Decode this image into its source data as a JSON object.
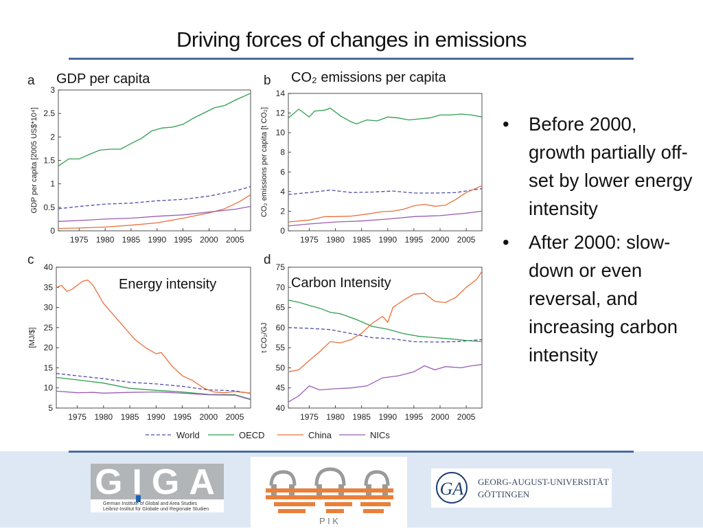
{
  "slide": {
    "title": "Driving forces of changes in emissions",
    "bullets": [
      "Before 2000, growth partially off-set by lower energy intensity",
      "After 2000: slow-down or even reversal, and increasing carbon intensity"
    ]
  },
  "logos": {
    "giga": {
      "big": "GIGA",
      "line1": "German Institute of Global and Area Studies",
      "line2": "Leibniz-Institut für Globale und Regionale Studien"
    },
    "pik": {
      "text": "P I K"
    },
    "goettingen": {
      "line1": "GEORG-AUGUST-UNIVERSITÄT",
      "line2": "GÖTTINGEN"
    }
  },
  "colors": {
    "world": "#4a4aa8",
    "oecd": "#2e9e4e",
    "china": "#e8703a",
    "nics": "#9a5cb4",
    "rule": "#4a6aa0"
  },
  "legend": [
    "World",
    "OECD",
    "China",
    "NICs"
  ],
  "chart_data": [
    {
      "type": "line",
      "letter": "a",
      "title": "GDP per capita",
      "ylabel": "GDP per capita [2005 US$*10⁴]",
      "xlim": [
        1971,
        2008
      ],
      "ylim": [
        0,
        3
      ],
      "yticks": [
        0,
        0.5,
        1,
        1.5,
        2,
        2.5,
        3
      ],
      "xticks": [
        1975,
        1980,
        1985,
        1990,
        1995,
        2000,
        2005
      ],
      "series": [
        {
          "name": "World",
          "points": [
            [
              1971,
              0.47
            ],
            [
              1975,
              0.52
            ],
            [
              1980,
              0.57
            ],
            [
              1985,
              0.59
            ],
            [
              1990,
              0.64
            ],
            [
              1995,
              0.67
            ],
            [
              2000,
              0.74
            ],
            [
              2005,
              0.85
            ],
            [
              2008,
              0.94
            ]
          ]
        },
        {
          "name": "OECD",
          "points": [
            [
              1971,
              1.38
            ],
            [
              1973,
              1.53
            ],
            [
              1975,
              1.53
            ],
            [
              1977,
              1.63
            ],
            [
              1979,
              1.72
            ],
            [
              1981,
              1.74
            ],
            [
              1983,
              1.74
            ],
            [
              1985,
              1.86
            ],
            [
              1987,
              1.97
            ],
            [
              1989,
              2.13
            ],
            [
              1991,
              2.19
            ],
            [
              1993,
              2.21
            ],
            [
              1995,
              2.27
            ],
            [
              1997,
              2.4
            ],
            [
              1999,
              2.51
            ],
            [
              2001,
              2.62
            ],
            [
              2003,
              2.67
            ],
            [
              2005,
              2.78
            ],
            [
              2008,
              2.93
            ]
          ]
        },
        {
          "name": "China",
          "points": [
            [
              1971,
              0.05
            ],
            [
              1975,
              0.06
            ],
            [
              1980,
              0.08
            ],
            [
              1985,
              0.12
            ],
            [
              1990,
              0.17
            ],
            [
              1995,
              0.27
            ],
            [
              2000,
              0.38
            ],
            [
              2003,
              0.47
            ],
            [
              2006,
              0.63
            ],
            [
              2008,
              0.77
            ]
          ]
        },
        {
          "name": "NICs",
          "points": [
            [
              1971,
              0.2
            ],
            [
              1975,
              0.22
            ],
            [
              1980,
              0.25
            ],
            [
              1985,
              0.27
            ],
            [
              1990,
              0.31
            ],
            [
              1995,
              0.34
            ],
            [
              2000,
              0.4
            ],
            [
              2005,
              0.46
            ],
            [
              2008,
              0.52
            ]
          ]
        }
      ]
    },
    {
      "type": "line",
      "letter": "b",
      "title": "CO₂ emissions per capita",
      "ylabel": "CO₂ emissions per capita [t CO₂]",
      "xlim": [
        1971,
        2008
      ],
      "ylim": [
        0,
        14
      ],
      "yticks": [
        0,
        2,
        4,
        6,
        8,
        10,
        12,
        14
      ],
      "xticks": [
        1975,
        1980,
        1985,
        1990,
        1995,
        2000,
        2005
      ],
      "series": [
        {
          "name": "World",
          "points": [
            [
              1971,
              3.7
            ],
            [
              1975,
              3.9
            ],
            [
              1979,
              4.15
            ],
            [
              1983,
              3.9
            ],
            [
              1987,
              3.95
            ],
            [
              1991,
              4.05
            ],
            [
              1995,
              3.85
            ],
            [
              1999,
              3.85
            ],
            [
              2003,
              3.9
            ],
            [
              2008,
              4.3
            ]
          ]
        },
        {
          "name": "OECD",
          "points": [
            [
              1971,
              11.5
            ],
            [
              1973,
              12.4
            ],
            [
              1975,
              11.6
            ],
            [
              1976,
              12.2
            ],
            [
              1978,
              12.3
            ],
            [
              1979,
              12.5
            ],
            [
              1981,
              11.7
            ],
            [
              1983,
              11.1
            ],
            [
              1984,
              10.9
            ],
            [
              1986,
              11.3
            ],
            [
              1988,
              11.2
            ],
            [
              1990,
              11.6
            ],
            [
              1992,
              11.5
            ],
            [
              1994,
              11.3
            ],
            [
              1996,
              11.4
            ],
            [
              1998,
              11.5
            ],
            [
              2000,
              11.8
            ],
            [
              2002,
              11.8
            ],
            [
              2004,
              11.9
            ],
            [
              2006,
              11.8
            ],
            [
              2008,
              11.6
            ]
          ]
        },
        {
          "name": "China",
          "points": [
            [
              1971,
              0.9
            ],
            [
              1975,
              1.1
            ],
            [
              1978,
              1.45
            ],
            [
              1980,
              1.45
            ],
            [
              1983,
              1.5
            ],
            [
              1986,
              1.7
            ],
            [
              1989,
              1.95
            ],
            [
              1991,
              2.0
            ],
            [
              1993,
              2.2
            ],
            [
              1995,
              2.55
            ],
            [
              1997,
              2.7
            ],
            [
              1999,
              2.5
            ],
            [
              2001,
              2.6
            ],
            [
              2003,
              3.2
            ],
            [
              2005,
              3.9
            ],
            [
              2008,
              4.6
            ]
          ]
        },
        {
          "name": "NICs",
          "points": [
            [
              1971,
              0.5
            ],
            [
              1975,
              0.7
            ],
            [
              1980,
              0.9
            ],
            [
              1985,
              1.0
            ],
            [
              1990,
              1.2
            ],
            [
              1995,
              1.45
            ],
            [
              2000,
              1.55
            ],
            [
              2005,
              1.8
            ],
            [
              2008,
              2.0
            ]
          ]
        }
      ]
    },
    {
      "type": "line",
      "letter": "c",
      "title": "Energy intensity",
      "ylabel": "[MJ/$]",
      "xlim": [
        1971,
        2008
      ],
      "ylim": [
        5,
        40
      ],
      "yticks": [
        5,
        10,
        15,
        20,
        25,
        30,
        35,
        40
      ],
      "xticks": [
        1975,
        1980,
        1985,
        1990,
        1995,
        2000,
        2005
      ],
      "series": [
        {
          "name": "World",
          "points": [
            [
              1971,
              13.6
            ],
            [
              1975,
              13.0
            ],
            [
              1980,
              12.3
            ],
            [
              1985,
              11.4
            ],
            [
              1990,
              11.0
            ],
            [
              1995,
              10.4
            ],
            [
              2000,
              9.5
            ],
            [
              2005,
              9.3
            ],
            [
              2008,
              8.6
            ]
          ]
        },
        {
          "name": "OECD",
          "points": [
            [
              1971,
              12.6
            ],
            [
              1975,
              12.0
            ],
            [
              1980,
              11.2
            ],
            [
              1985,
              9.9
            ],
            [
              1990,
              9.4
            ],
            [
              1995,
              9.0
            ],
            [
              2000,
              8.4
            ],
            [
              2005,
              8.3
            ],
            [
              2008,
              7.2
            ]
          ]
        },
        {
          "name": "China",
          "points": [
            [
              1971,
              35
            ],
            [
              1972,
              35.5
            ],
            [
              1973,
              34
            ],
            [
              1974,
              34.5
            ],
            [
              1976,
              36.5
            ],
            [
              1977,
              36.8
            ],
            [
              1978,
              35.5
            ],
            [
              1980,
              31
            ],
            [
              1982,
              28
            ],
            [
              1984,
              25
            ],
            [
              1986,
              22
            ],
            [
              1988,
              20
            ],
            [
              1990,
              18.5
            ],
            [
              1991,
              18.8
            ],
            [
              1993,
              15.5
            ],
            [
              1995,
              13
            ],
            [
              1997,
              11.8
            ],
            [
              1999,
              10.0
            ],
            [
              2001,
              9.0
            ],
            [
              2003,
              8.8
            ],
            [
              2005,
              9.1
            ],
            [
              2008,
              8.7
            ]
          ]
        },
        {
          "name": "NICs",
          "points": [
            [
              1971,
              9.2
            ],
            [
              1975,
              8.8
            ],
            [
              1978,
              8.9
            ],
            [
              1980,
              8.7
            ],
            [
              1985,
              8.9
            ],
            [
              1990,
              9.0
            ],
            [
              1995,
              8.7
            ],
            [
              2000,
              8.3
            ],
            [
              2005,
              8.2
            ],
            [
              2008,
              7.1
            ]
          ]
        }
      ]
    },
    {
      "type": "line",
      "letter": "d",
      "title": "Carbon Intensity",
      "ylabel": "t CO₂/GJ",
      "xlim": [
        1971,
        2008
      ],
      "ylim": [
        40,
        75
      ],
      "yticks": [
        40,
        45,
        50,
        55,
        60,
        65,
        70,
        75
      ],
      "xticks": [
        1975,
        1980,
        1985,
        1990,
        1995,
        2000,
        2005
      ],
      "series": [
        {
          "name": "World",
          "points": [
            [
              1971,
              60
            ],
            [
              1975,
              59.8
            ],
            [
              1979,
              59.5
            ],
            [
              1983,
              58.5
            ],
            [
              1987,
              57.5
            ],
            [
              1991,
              57.2
            ],
            [
              1995,
              56.5
            ],
            [
              1999,
              56.4
            ],
            [
              2003,
              56.5
            ],
            [
              2008,
              57
            ]
          ]
        },
        {
          "name": "OECD",
          "points": [
            [
              1971,
              66.8
            ],
            [
              1973,
              66.3
            ],
            [
              1975,
              65.5
            ],
            [
              1977,
              64.8
            ],
            [
              1979,
              63.8
            ],
            [
              1981,
              63.4
            ],
            [
              1984,
              62
            ],
            [
              1987,
              60.3
            ],
            [
              1990,
              59.6
            ],
            [
              1993,
              58.5
            ],
            [
              1996,
              57.8
            ],
            [
              1999,
              57.5
            ],
            [
              2002,
              57.2
            ],
            [
              2005,
              56.8
            ],
            [
              2008,
              56.5
            ]
          ]
        },
        {
          "name": "China",
          "points": [
            [
              1971,
              49
            ],
            [
              1973,
              49.5
            ],
            [
              1975,
              51.8
            ],
            [
              1977,
              54
            ],
            [
              1979,
              56.5
            ],
            [
              1981,
              56.2
            ],
            [
              1983,
              57
            ],
            [
              1985,
              58.6
            ],
            [
              1987,
              61
            ],
            [
              1989,
              62.8
            ],
            [
              1990,
              61.3
            ],
            [
              1991,
              65
            ],
            [
              1993,
              66.8
            ],
            [
              1995,
              68.3
            ],
            [
              1997,
              68.5
            ],
            [
              1999,
              66.5
            ],
            [
              2001,
              66.2
            ],
            [
              2003,
              67.5
            ],
            [
              2005,
              70
            ],
            [
              2007,
              72
            ],
            [
              2008,
              74
            ]
          ]
        },
        {
          "name": "NICs",
          "points": [
            [
              1971,
              41.5
            ],
            [
              1973,
              43
            ],
            [
              1975,
              45.5
            ],
            [
              1977,
              44.5
            ],
            [
              1980,
              44.8
            ],
            [
              1983,
              45
            ],
            [
              1986,
              45.5
            ],
            [
              1989,
              47.5
            ],
            [
              1992,
              48
            ],
            [
              1995,
              49
            ],
            [
              1997,
              50.5
            ],
            [
              1999,
              49.5
            ],
            [
              2001,
              50.3
            ],
            [
              2004,
              50
            ],
            [
              2006,
              50.5
            ],
            [
              2008,
              50.8
            ]
          ]
        }
      ]
    }
  ]
}
